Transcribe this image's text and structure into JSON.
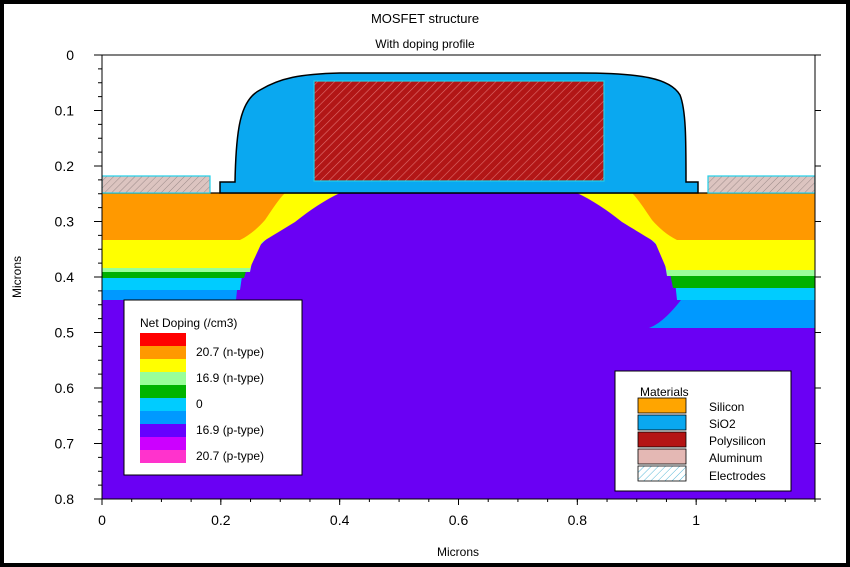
{
  "chart_data": {
    "type": "area",
    "title": "MOSFET structure",
    "subtitle": "With doping profile",
    "xlabel": "Microns",
    "ylabel": "Microns",
    "xlim": [
      0,
      1.2
    ],
    "ylim": [
      0,
      0.8
    ],
    "y_inverted": true,
    "x_ticks": [
      "0",
      "0.2",
      "0.4",
      "0.6",
      "0.8",
      "1"
    ],
    "x_tick_values": [
      0,
      0.2,
      0.4,
      0.6,
      0.8,
      1.0
    ],
    "y_ticks": [
      "0",
      "0.1",
      "0.2",
      "0.3",
      "0.4",
      "0.5",
      "0.6",
      "0.7",
      "0.8"
    ],
    "y_tick_values": [
      0,
      0.1,
      0.2,
      0.3,
      0.4,
      0.5,
      0.6,
      0.7,
      0.8
    ],
    "grid": false,
    "regions": {
      "gate_oxide_spacer": {
        "material": "SiO2",
        "x": [
          0.2,
          0.99
        ],
        "y": [
          0.0,
          0.22
        ]
      },
      "polysilicon_gate": {
        "material": "Polysilicon",
        "x": [
          0.36,
          0.84
        ],
        "y": [
          0.01,
          0.2
        ]
      },
      "source_contact": {
        "material": "Aluminum",
        "x": [
          0.0,
          0.18
        ],
        "y": [
          0.19,
          0.22
        ]
      },
      "drain_contact": {
        "material": "Aluminum",
        "x": [
          1.02,
          1.2
        ],
        "y": [
          0.19,
          0.22
        ]
      },
      "substrate": {
        "material": "Silicon",
        "x": [
          0.0,
          1.2
        ],
        "y": [
          0.22,
          0.8
        ]
      }
    },
    "doping_bands_right": [
      {
        "level": "n-high",
        "y": [
          0.22,
          0.31
        ]
      },
      {
        "level": "n-mid",
        "y": [
          0.31,
          0.37
        ]
      },
      {
        "level": "n-low",
        "y": [
          0.37,
          0.38
        ]
      },
      {
        "level": "junction",
        "y": [
          0.38,
          0.4
        ]
      },
      {
        "level": "p-low",
        "y": [
          0.4,
          0.42
        ]
      },
      {
        "level": "p-mid",
        "y": [
          0.42,
          0.48
        ]
      },
      {
        "level": "p-bulk",
        "y": [
          0.48,
          0.8
        ]
      }
    ],
    "legend_doping": {
      "title": "Net Doping (/cm3)",
      "labels": [
        "20.7 (n-type)",
        "16.9 (n-type)",
        "0",
        "16.9 (p-type)",
        "20.7 (p-type)"
      ],
      "colors": [
        "#ff0000",
        "#ff9900",
        "#ffff00",
        "#99ff99",
        "#00b400",
        "#00ccff",
        "#0099ff",
        "#6600ff",
        "#cc00ff",
        "#ff33cc"
      ],
      "placement": "bottom-left"
    },
    "legend_materials": {
      "title": "Materials",
      "items": [
        {
          "label": "Silicon",
          "color": "#ffa500"
        },
        {
          "label": "SiO2",
          "color": "#00a2f0"
        },
        {
          "label": "Polysilicon",
          "color": "#b41414"
        },
        {
          "label": "Aluminum",
          "color": "#e4b4b0"
        },
        {
          "label": "Electrodes",
          "color": "#cfefff"
        }
      ],
      "placement": "bottom-right"
    }
  }
}
